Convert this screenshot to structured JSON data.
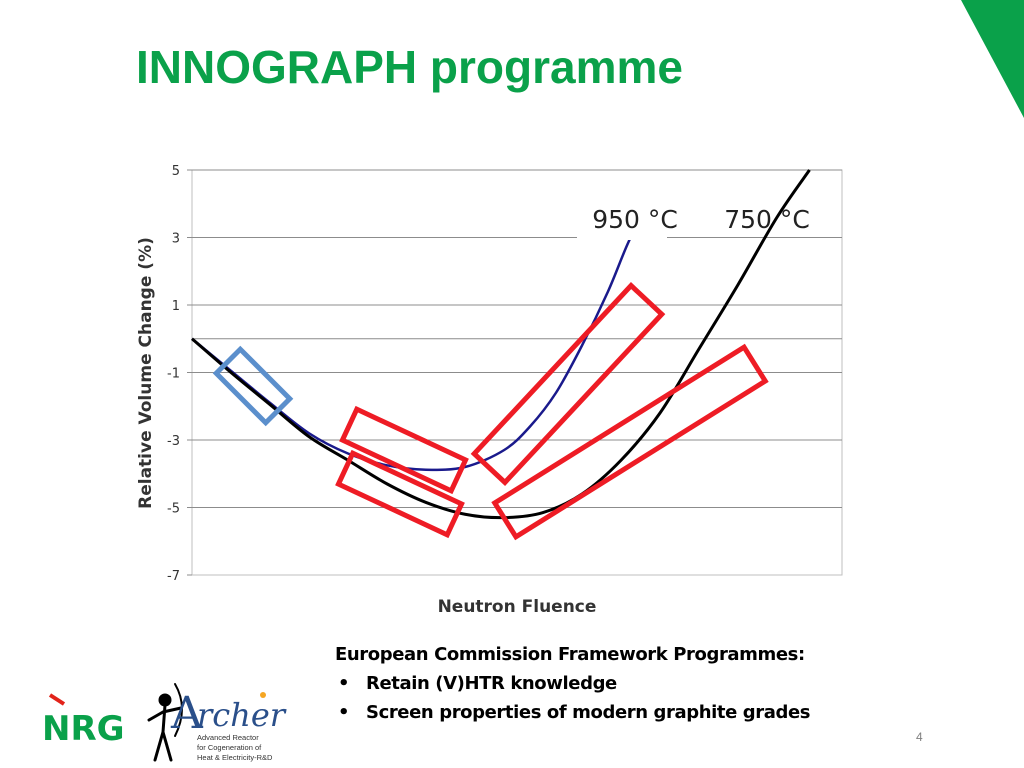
{
  "slide": {
    "title": "INNOGRAPH programme",
    "page_number": "4"
  },
  "text_block": {
    "heading": "European Commission Framework Programmes:",
    "bullets": [
      "Retain (V)HTR knowledge",
      "Screen properties of modern graphite grades"
    ]
  },
  "logos": {
    "nrg": "NRG",
    "archer": {
      "name": "rcher",
      "line1": "Advanced Reactor",
      "line2": "for Cogeneration of",
      "line3": "Heat & Electricity-R&D"
    }
  },
  "colors": {
    "title": "#0aa14a",
    "accent": "#00a651",
    "curve_950": "#1a1a8c",
    "curve_750": "#000000",
    "highlight_red": "#ee1c25",
    "highlight_blue": "#5b8fcc"
  },
  "chart_data": {
    "type": "line",
    "xlabel": "Neutron Fluence",
    "ylabel": "Relative Volume Change (%)",
    "ylim": [
      -7,
      5
    ],
    "yticks": [
      "5",
      "3",
      "1",
      "-1",
      "-3",
      "-5",
      "-7"
    ],
    "grid": true,
    "x_ticks_labeled": false,
    "series": [
      {
        "name": "950 °C",
        "x": [
          0,
          0.06,
          0.12,
          0.18,
          0.24,
          0.3,
          0.36,
          0.42,
          0.48,
          0.52,
          0.56,
          0.6,
          0.64,
          0.67,
          0.7
        ],
        "y": [
          0.0,
          -0.95,
          -1.9,
          -2.8,
          -3.4,
          -3.75,
          -3.88,
          -3.8,
          -3.3,
          -2.6,
          -1.6,
          -0.2,
          1.4,
          2.8,
          4.0
        ]
      },
      {
        "name": "750 °C",
        "x": [
          0,
          0.06,
          0.12,
          0.18,
          0.24,
          0.3,
          0.36,
          0.42,
          0.48,
          0.54,
          0.6,
          0.66,
          0.72,
          0.78,
          0.84,
          0.9,
          0.95
        ],
        "y": [
          0.0,
          -1.0,
          -1.95,
          -2.9,
          -3.6,
          -4.3,
          -4.85,
          -5.2,
          -5.3,
          -5.15,
          -4.6,
          -3.6,
          -2.2,
          -0.3,
          1.6,
          3.6,
          5.0
        ]
      }
    ]
  }
}
